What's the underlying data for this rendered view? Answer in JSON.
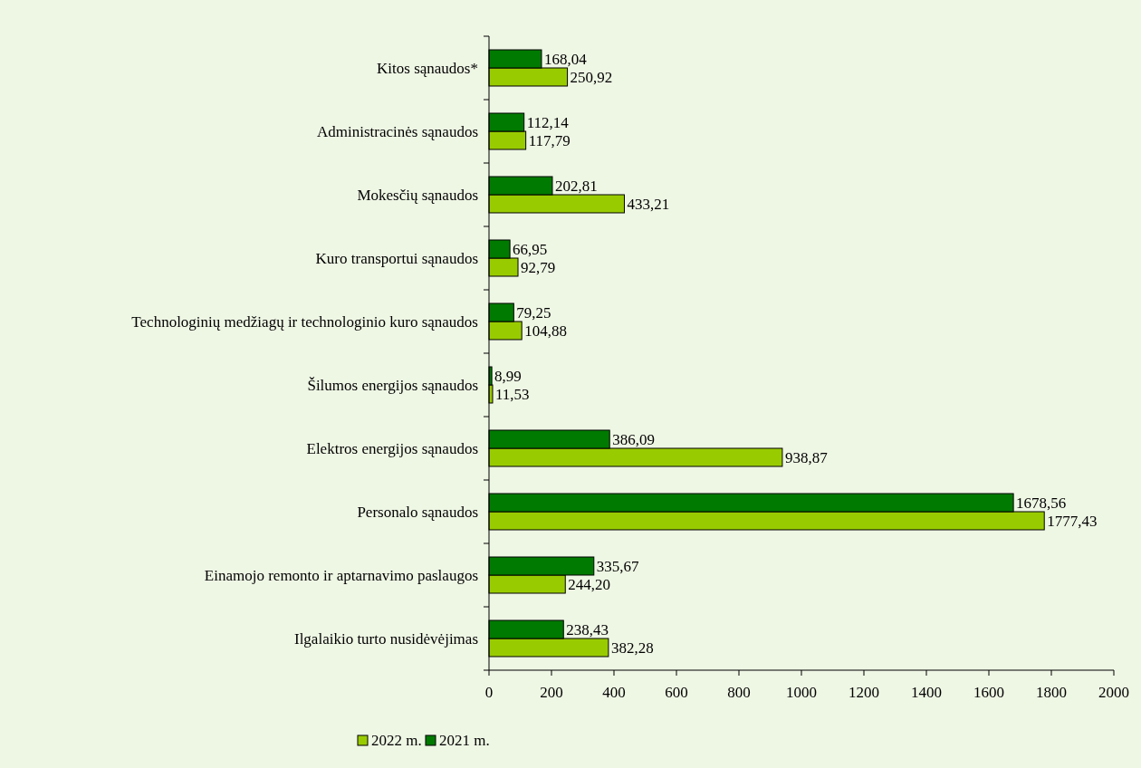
{
  "chart_data": {
    "type": "bar",
    "orientation": "horizontal",
    "categories": [
      "Kitos sąnaudos*",
      "Administracinės sąnaudos",
      "Mokesčių sąnaudos",
      "Kuro transportui sąnaudos",
      "Technologinių medžiagų ir technologinio kuro sąnaudos",
      "Šilumos energijos sąnaudos",
      "Elektros energijos sąnaudos",
      "Personalo sąnaudos",
      "Einamojo remonto ir aptarnavimo paslaugos",
      "Ilgalaikio turto nusidėvėjimas"
    ],
    "series": [
      {
        "name": "2022 m.",
        "color": "#99cc00",
        "values": [
          250.92,
          117.79,
          433.21,
          92.79,
          104.88,
          11.53,
          938.87,
          1777.43,
          244.2,
          382.28
        ],
        "value_labels": [
          "250,92",
          "117,79",
          "433,21",
          "92,79",
          "104,88",
          "11,53",
          "938,87",
          "1777,43",
          "244,20",
          "382,28"
        ]
      },
      {
        "name": "2021 m.",
        "color": "#007a00",
        "values": [
          168.04,
          112.14,
          202.81,
          66.95,
          79.25,
          8.99,
          386.09,
          1678.56,
          335.67,
          238.43
        ],
        "value_labels": [
          "168,04",
          "112,14",
          "202,81",
          "66,95",
          "79,25",
          "8,99",
          "386,09",
          "1678,56",
          "335,67",
          "238,43"
        ]
      }
    ],
    "xlim": [
      0,
      2000
    ],
    "xticks": [
      0,
      200,
      400,
      600,
      800,
      1000,
      1200,
      1400,
      1600,
      1800,
      2000
    ],
    "grid": false,
    "legend": "bottom"
  }
}
